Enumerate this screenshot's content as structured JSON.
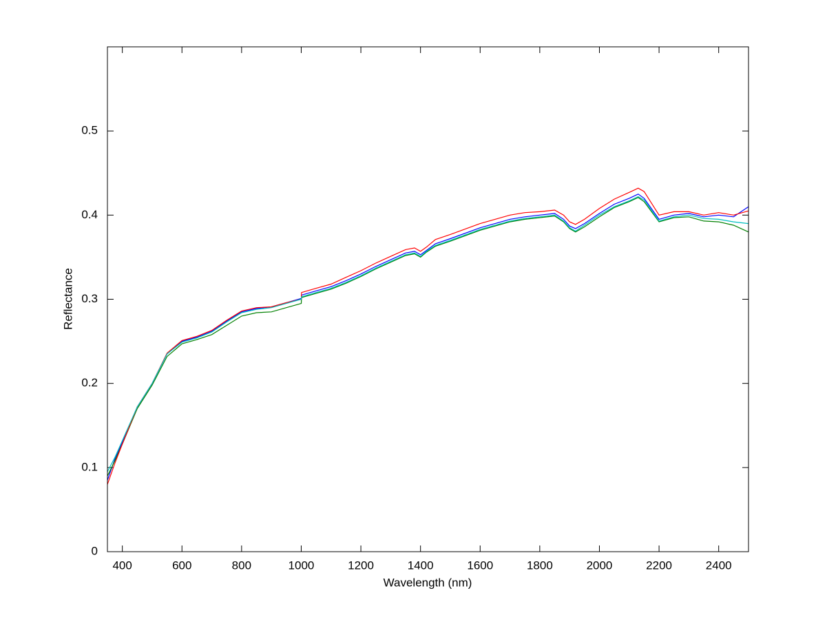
{
  "chart_data": {
    "type": "line",
    "xlabel": "Wavelength (nm)",
    "ylabel": "Reflectance",
    "x": [
      350,
      375,
      400,
      450,
      500,
      550,
      600,
      650,
      700,
      750,
      800,
      850,
      900,
      950,
      1000,
      1001,
      1050,
      1100,
      1150,
      1200,
      1250,
      1300,
      1350,
      1380,
      1400,
      1420,
      1450,
      1500,
      1600,
      1700,
      1750,
      1800,
      1850,
      1880,
      1900,
      1920,
      1950,
      2000,
      2050,
      2100,
      2130,
      2150,
      2200,
      2250,
      2300,
      2350,
      2400,
      2450,
      2500
    ],
    "series": [
      {
        "color": "#0000ff",
        "values": [
          0.085,
          0.11,
          0.13,
          0.172,
          0.2,
          0.235,
          0.25,
          0.255,
          0.262,
          0.274,
          0.285,
          0.289,
          0.291,
          0.296,
          0.301,
          0.305,
          0.31,
          0.315,
          0.322,
          0.33,
          0.339,
          0.347,
          0.355,
          0.357,
          0.353,
          0.358,
          0.366,
          0.372,
          0.385,
          0.395,
          0.398,
          0.4,
          0.402,
          0.395,
          0.387,
          0.384,
          0.39,
          0.402,
          0.413,
          0.42,
          0.425,
          0.42,
          0.395,
          0.4,
          0.402,
          0.398,
          0.4,
          0.398,
          0.41
        ]
      },
      {
        "color": "#008000",
        "values": [
          0.09,
          0.108,
          0.128,
          0.17,
          0.198,
          0.232,
          0.247,
          0.252,
          0.258,
          0.269,
          0.28,
          0.284,
          0.285,
          0.29,
          0.295,
          0.302,
          0.307,
          0.312,
          0.319,
          0.327,
          0.336,
          0.344,
          0.352,
          0.354,
          0.35,
          0.356,
          0.363,
          0.369,
          0.382,
          0.392,
          0.395,
          0.397,
          0.399,
          0.392,
          0.384,
          0.38,
          0.386,
          0.398,
          0.409,
          0.416,
          0.421,
          0.416,
          0.392,
          0.397,
          0.398,
          0.393,
          0.392,
          0.388,
          0.38
        ]
      },
      {
        "color": "#ff0000",
        "values": [
          0.08,
          0.105,
          0.128,
          0.172,
          0.2,
          0.236,
          0.251,
          0.256,
          0.263,
          0.275,
          0.286,
          0.29,
          0.291,
          0.296,
          0.3,
          0.308,
          0.313,
          0.318,
          0.326,
          0.334,
          0.343,
          0.351,
          0.359,
          0.361,
          0.357,
          0.362,
          0.371,
          0.377,
          0.39,
          0.4,
          0.403,
          0.404,
          0.406,
          0.4,
          0.392,
          0.389,
          0.395,
          0.408,
          0.419,
          0.427,
          0.432,
          0.428,
          0.4,
          0.404,
          0.404,
          0.4,
          0.403,
          0.4,
          0.405
        ]
      },
      {
        "color": "#00bfbf",
        "values": [
          0.095,
          0.112,
          0.132,
          0.172,
          0.2,
          0.235,
          0.249,
          0.254,
          0.261,
          0.273,
          0.284,
          0.288,
          0.29,
          0.295,
          0.3,
          0.303,
          0.308,
          0.313,
          0.32,
          0.328,
          0.337,
          0.345,
          0.353,
          0.355,
          0.351,
          0.357,
          0.364,
          0.37,
          0.383,
          0.393,
          0.396,
          0.398,
          0.4,
          0.393,
          0.385,
          0.381,
          0.388,
          0.4,
          0.41,
          0.417,
          0.422,
          0.418,
          0.393,
          0.398,
          0.4,
          0.396,
          0.395,
          0.392,
          0.39
        ]
      }
    ],
    "xlim": [
      350,
      2500
    ],
    "xticks": [
      400,
      600,
      800,
      1000,
      1200,
      1400,
      1600,
      1800,
      2000,
      2200,
      2400
    ],
    "ylim": [
      0,
      0.6
    ],
    "yticks": [
      0,
      0.1,
      0.2,
      0.3,
      0.4,
      0.5
    ],
    "grid": false
  }
}
